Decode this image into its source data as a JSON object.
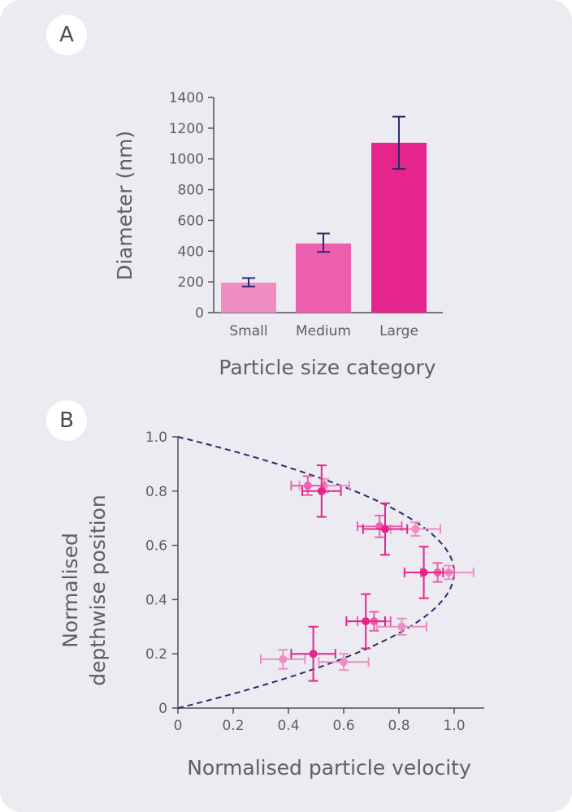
{
  "panels": {
    "a_label": "A",
    "b_label": "B"
  },
  "chart_data": [
    {
      "type": "bar",
      "title": "",
      "xlabel": "Particle size category",
      "ylabel": "Diameter (nm)",
      "categories": [
        "Small",
        "Medium",
        "Large"
      ],
      "values": [
        195,
        450,
        1105
      ],
      "error_low": [
        170,
        395,
        935
      ],
      "error_high": [
        225,
        515,
        1275
      ],
      "colors": [
        "#ef8dc2",
        "#ec5fad",
        "#e5248c"
      ],
      "error_color": "#2b2a6e",
      "ylim": [
        0,
        1400
      ],
      "yticks": [
        0,
        200,
        400,
        600,
        800,
        1000,
        1200,
        1400
      ]
    },
    {
      "type": "scatter",
      "title": "",
      "xlabel": "Normalised particle velocity",
      "ylabel_lines": [
        "Normalised",
        "depthwise position"
      ],
      "xlim": [
        0,
        1.1
      ],
      "ylim": [
        0,
        1.0
      ],
      "xticks": [
        0,
        0.2,
        0.4,
        0.6,
        0.8,
        1.0
      ],
      "xtick_labels": [
        "0",
        "0.2",
        "0.4",
        "0.6",
        "0.8",
        "1.0"
      ],
      "yticks": [
        0,
        0.2,
        0.4,
        0.6,
        0.8,
        1.0
      ],
      "ytick_labels": [
        "0",
        "0.2",
        "0.4",
        "0.6",
        "0.8",
        "1.0"
      ],
      "curve": {
        "type": "parabola",
        "formula": "x = 4y(1 - y)",
        "color": "#2b2a6e",
        "style": "dashed"
      },
      "series": [
        {
          "color": "#ef8dc2",
          "points": [
            {
              "x": 0.38,
              "y": 0.18,
              "xerr": 0.08,
              "yerr": 0.035
            },
            {
              "x": 0.6,
              "y": 0.17,
              "xerr": 0.09,
              "yerr": 0.03
            },
            {
              "x": 0.81,
              "y": 0.3,
              "xerr": 0.09,
              "yerr": 0.03
            },
            {
              "x": 0.98,
              "y": 0.5,
              "xerr": 0.09,
              "yerr": 0.025
            },
            {
              "x": 0.86,
              "y": 0.66,
              "xerr": 0.09,
              "yerr": 0.025
            },
            {
              "x": 0.53,
              "y": 0.82,
              "xerr": 0.09,
              "yerr": 0.025
            }
          ]
        },
        {
          "color": "#ec5fad",
          "points": [
            {
              "x": 0.71,
              "y": 0.32,
              "xerr": 0.06,
              "yerr": 0.035
            },
            {
              "x": 0.94,
              "y": 0.5,
              "xerr": 0.06,
              "yerr": 0.035
            },
            {
              "x": 0.73,
              "y": 0.67,
              "xerr": 0.08,
              "yerr": 0.04
            },
            {
              "x": 0.47,
              "y": 0.82,
              "xerr": 0.06,
              "yerr": 0.035
            }
          ]
        },
        {
          "color": "#e5248c",
          "points": [
            {
              "x": 0.49,
              "y": 0.2,
              "xerr": 0.08,
              "yerr": 0.1
            },
            {
              "x": 0.68,
              "y": 0.32,
              "xerr": 0.07,
              "yerr": 0.1
            },
            {
              "x": 0.89,
              "y": 0.5,
              "xerr": 0.07,
              "yerr": 0.095
            },
            {
              "x": 0.75,
              "y": 0.66,
              "xerr": 0.08,
              "yerr": 0.095
            },
            {
              "x": 0.52,
              "y": 0.8,
              "xerr": 0.07,
              "yerr": 0.095
            }
          ]
        }
      ]
    }
  ]
}
